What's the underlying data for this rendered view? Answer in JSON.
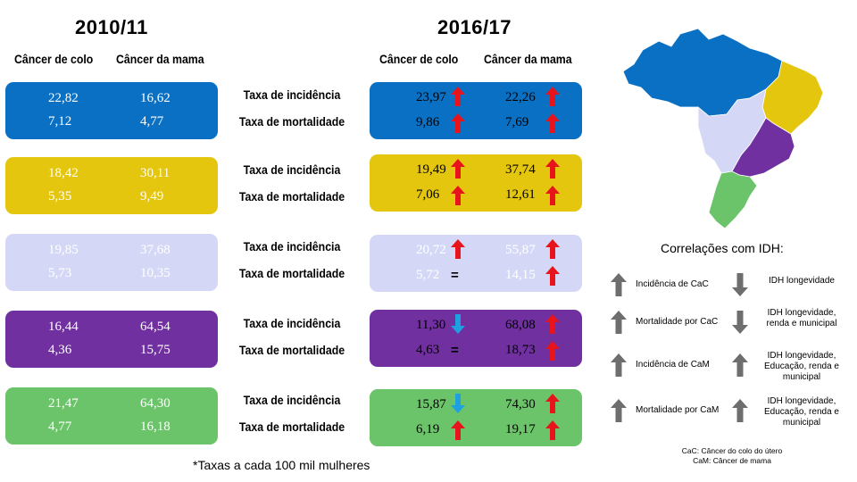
{
  "header": {
    "period_left": "2010/11",
    "period_right": "2016/17",
    "col_colo": "Câncer de colo",
    "col_mama": "Câncer da mama"
  },
  "rows": [
    {
      "region_color": "#0A70C4",
      "text_color": "#ffffff",
      "incidence_label": "Taxa de incidência",
      "mortality_label": "Taxa de mortalidade",
      "left": {
        "inc_colo": "22,82",
        "inc_mama": "16,62",
        "mort_colo": "7,12",
        "mort_mama": "4,77"
      },
      "right": {
        "inc_colo": "23,97",
        "inc_mama": "22,26",
        "mort_colo": "9,86",
        "mort_mama": "7,69"
      },
      "trend": {
        "inc_colo": "up",
        "inc_mama": "up",
        "mort_colo": "up",
        "mort_mama": "up"
      }
    },
    {
      "region_color": "#E5C60F",
      "text_color": "#ffffff",
      "incidence_label": "Taxa de incidência",
      "mortality_label": "Taxa de mortalidade",
      "left": {
        "inc_colo": "18,42",
        "inc_mama": "30,11",
        "mort_colo": "5,35",
        "mort_mama": "9,49"
      },
      "right": {
        "inc_colo": "19,49",
        "inc_mama": "37,74",
        "mort_colo": "7,06",
        "mort_mama": "12,61"
      },
      "trend": {
        "inc_colo": "up",
        "inc_mama": "up",
        "mort_colo": "up",
        "mort_mama": "up"
      }
    },
    {
      "region_color": "#D4D8F6",
      "text_color": "#ffffff",
      "incidence_label": "Taxa de incidência",
      "mortality_label": "Taxa de mortalidade",
      "left": {
        "inc_colo": "19,85",
        "inc_mama": "37,68",
        "mort_colo": "5,73",
        "mort_mama": "10,35"
      },
      "right": {
        "inc_colo": "20,72",
        "inc_mama": "55,87",
        "mort_colo": "5,72",
        "mort_mama": "14,15"
      },
      "trend": {
        "inc_colo": "up",
        "inc_mama": "up",
        "mort_colo": "equal",
        "mort_mama": "up"
      }
    },
    {
      "region_color": "#7030A0",
      "text_color": "#ffffff",
      "incidence_label": "Taxa de incidência",
      "mortality_label": "Taxa de mortalidade",
      "left": {
        "inc_colo": "16,44",
        "inc_mama": "64,54",
        "mort_colo": "4,36",
        "mort_mama": "15,75"
      },
      "right": {
        "inc_colo": "11,30",
        "inc_mama": "68,08",
        "mort_colo": "4,63",
        "mort_mama": "18,73"
      },
      "trend": {
        "inc_colo": "down",
        "inc_mama": "up",
        "mort_colo": "equal",
        "mort_mama": "up"
      }
    },
    {
      "region_color": "#6CC46A",
      "text_color": "#ffffff",
      "incidence_label": "Taxa de incidência",
      "mortality_label": "Taxa de mortalidade",
      "left": {
        "inc_colo": "21,47",
        "inc_mama": "64,30",
        "mort_colo": "4,77",
        "mort_mama": "16,18"
      },
      "right": {
        "inc_colo": "15,87",
        "inc_mama": "74,30",
        "mort_colo": "6,19",
        "mort_mama": "19,17"
      },
      "trend": {
        "inc_colo": "down",
        "inc_mama": "up",
        "mort_colo": "up",
        "mort_mama": "up"
      }
    }
  ],
  "equal_sign": "=",
  "correlations": {
    "title": "Correlações com IDH:",
    "items": [
      {
        "indicator": "Incidência de CaC",
        "idh": "IDH  longevidade",
        "idh_trend": "down"
      },
      {
        "indicator": "Mortalidade  por CaC",
        "idh": "IDH  longevidade, renda e municipal",
        "idh_trend": "down"
      },
      {
        "indicator": "Incidência de CaM",
        "idh": "IDH  longevidade, Educação, renda e municipal",
        "idh_trend": "up"
      },
      {
        "indicator": "Mortalidade  por CaM",
        "idh": "IDH  longevidade, Educação, renda e municipal",
        "idh_trend": "up"
      }
    ],
    "legend_cac": "CaC: Câncer do colo do útero",
    "legend_cam": "CaM: Câncer de mama"
  },
  "footnote": "*Taxas a cada 100 mil mulheres",
  "colors": {
    "arrow_up": "#E8141B",
    "arrow_down": "#1FA0E0",
    "gray_arrow": "#6E6E6E"
  }
}
